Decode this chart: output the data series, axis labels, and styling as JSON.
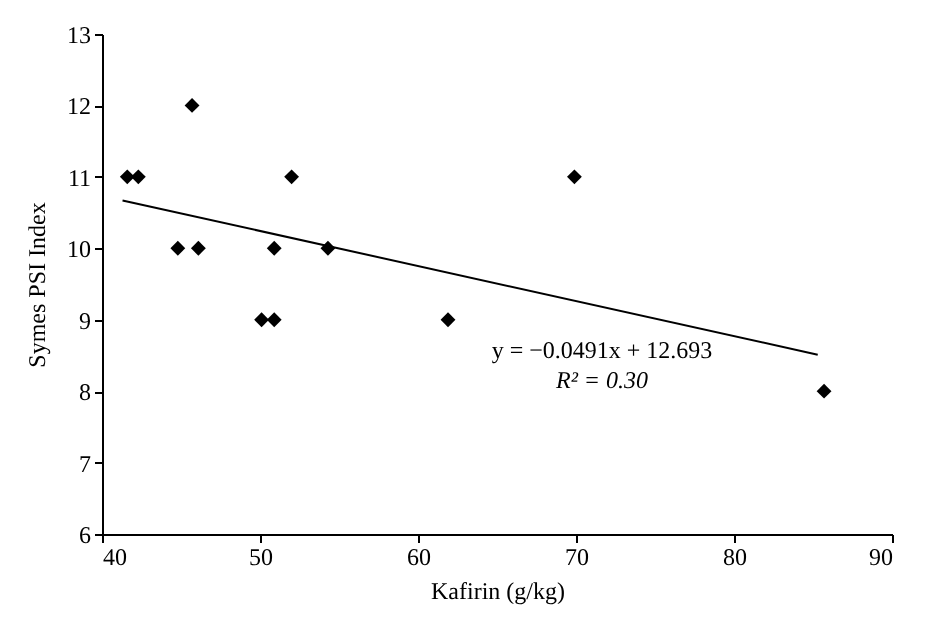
{
  "chart_data": {
    "type": "scatter",
    "xlabel": "Kafirin (g/kg)",
    "ylabel": "Symes PSI Index",
    "xlim": [
      40,
      90
    ],
    "xticks": [
      40,
      50,
      60,
      70,
      80,
      90
    ],
    "ylim": [
      6,
      13
    ],
    "yticks": [
      6,
      7,
      8,
      9,
      10,
      11,
      12,
      13
    ],
    "grid": false,
    "marker": "diamond",
    "series": [
      {
        "color": "#000000",
        "x": [
          41.6,
          42.3,
          45.7,
          44.8,
          46.1,
          50.1,
          50.9,
          50.9,
          52.0,
          54.3,
          61.9,
          69.9,
          85.7
        ],
        "values": [
          11,
          11,
          12,
          10,
          10,
          9,
          9,
          10,
          11,
          10,
          9,
          11,
          8
        ]
      },
      {
        "type": "line",
        "color": "#000000",
        "x": [
          41.3,
          85.3
        ],
        "values": [
          10.67,
          8.51
        ],
        "line_style": "solid",
        "marker": "none"
      }
    ],
    "annotations": [
      "y = −0.0491x + 12.693",
      "R² = 0.30"
    ]
  }
}
